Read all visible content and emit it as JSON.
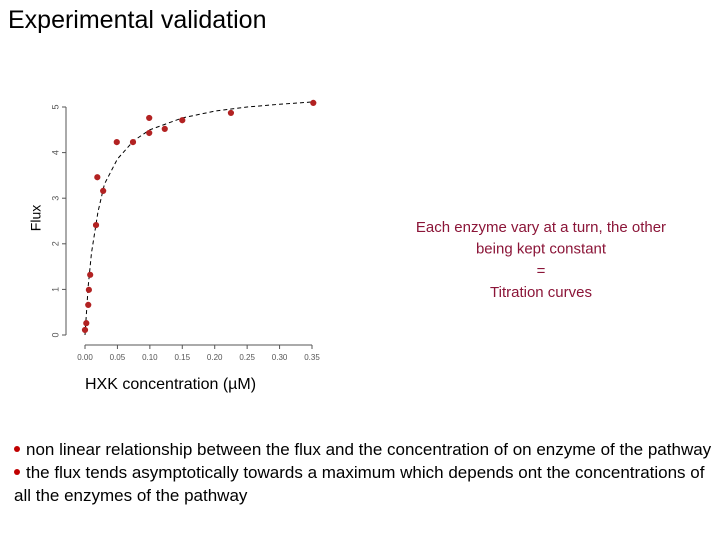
{
  "title": "Experimental validation",
  "annotation": [
    "Each enzyme vary at a turn, the other",
    "being kept constant",
    "=",
    "Titration curves"
  ],
  "bullets": [
    "non linear relationship between the flux and the concentration of on enzyme of the pathway",
    "the flux tends asymptotically towards a maximum which depends ont the concentrations of all the enzymes of the pathway"
  ],
  "chart_data": {
    "type": "scatter",
    "x_label": "HXK concentration (µM)",
    "y_label": "Flux",
    "color": "#b22222",
    "x": [
      0.0,
      0.002,
      0.005,
      0.006,
      0.008,
      0.017,
      0.028,
      0.019,
      0.049,
      0.074,
      0.099,
      0.099,
      0.123,
      0.15,
      0.225,
      0.352
    ],
    "values": [
      0.11,
      0.26,
      0.66,
      0.99,
      1.32,
      2.41,
      3.16,
      3.46,
      4.23,
      4.23,
      4.76,
      4.43,
      4.52,
      4.71,
      4.87,
      5.09
    ],
    "fit": {
      "x": [
        0.0,
        0.005,
        0.01,
        0.02,
        0.03,
        0.05,
        0.075,
        0.1,
        0.15,
        0.2,
        0.25,
        0.3,
        0.35
      ],
      "values": [
        0.0,
        1.08,
        1.8,
        2.7,
        3.31,
        3.86,
        4.26,
        4.5,
        4.76,
        4.91,
        5.0,
        5.06,
        5.11
      ]
    },
    "xlim": [
      0,
      0.35
    ],
    "ylim": [
      0,
      5
    ],
    "xticks": [
      {
        "value": 0,
        "label": "0.00"
      },
      {
        "value": 0.05,
        "label": "0.05"
      },
      {
        "value": 0.1,
        "label": "0.10"
      },
      {
        "value": 0.15,
        "label": "0.15"
      },
      {
        "value": 0.2,
        "label": "0.20"
      },
      {
        "value": 0.25,
        "label": "0.25"
      },
      {
        "value": 0.3,
        "label": "0.30"
      },
      {
        "value": 0.35,
        "label": "0.35"
      }
    ],
    "yticks": [
      0,
      1,
      2,
      3,
      4,
      5
    ]
  }
}
